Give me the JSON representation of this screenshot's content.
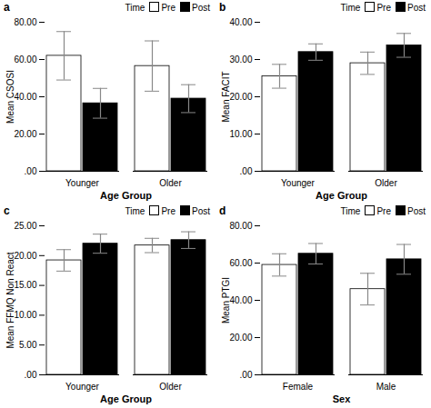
{
  "chart_data": [
    {
      "type": "bar",
      "title": "a",
      "xlabel": "Age Group",
      "ylabel": "Mean CSOSI",
      "categories": [
        "Younger",
        "Older"
      ],
      "series": [
        {
          "name": "Pre",
          "color": "white",
          "values": [
            62.0,
            56.5
          ],
          "errors": [
            13.0,
            13.5
          ]
        },
        {
          "name": "Post",
          "color": "black",
          "values": [
            36.5,
            39.0
          ],
          "errors": [
            8.0,
            7.5
          ]
        }
      ],
      "ylim": [
        0,
        80
      ],
      "yticks": [
        {
          "value": 0,
          "label": ".00"
        },
        {
          "value": 20,
          "label": "20.00"
        },
        {
          "value": 40,
          "label": "40.00"
        },
        {
          "value": 60,
          "label": "60.00"
        },
        {
          "value": 80,
          "label": "80.00"
        }
      ],
      "legend": "upper right",
      "legend_title": "Time",
      "grid": false
    },
    {
      "type": "bar",
      "title": "b",
      "xlabel": "Age Group",
      "ylabel": "Mean FACIT",
      "categories": [
        "Younger",
        "Older"
      ],
      "series": [
        {
          "name": "Pre",
          "color": "white",
          "values": [
            25.5,
            29.0
          ],
          "errors": [
            3.2,
            3.0
          ]
        },
        {
          "name": "Post",
          "color": "black",
          "values": [
            32.0,
            33.8
          ],
          "errors": [
            2.2,
            3.2
          ]
        }
      ],
      "ylim": [
        0,
        40
      ],
      "yticks": [
        {
          "value": 0,
          "label": ".00"
        },
        {
          "value": 10,
          "label": "10.00"
        },
        {
          "value": 20,
          "label": "20.00"
        },
        {
          "value": 30,
          "label": "30.00"
        },
        {
          "value": 40,
          "label": "40.00"
        }
      ],
      "legend": "upper right",
      "legend_title": "Time",
      "grid": false
    },
    {
      "type": "bar",
      "title": "c",
      "xlabel": "Age Group",
      "ylabel": "Mean FFMQ Non React",
      "categories": [
        "Younger",
        "Older"
      ],
      "series": [
        {
          "name": "Pre",
          "color": "white",
          "values": [
            19.2,
            21.7
          ],
          "errors": [
            1.8,
            1.2
          ]
        },
        {
          "name": "Post",
          "color": "black",
          "values": [
            22.0,
            22.6
          ],
          "errors": [
            1.6,
            1.4
          ]
        }
      ],
      "ylim": [
        0,
        25
      ],
      "yticks": [
        {
          "value": 0,
          "label": ".00"
        },
        {
          "value": 5,
          "label": "5.00"
        },
        {
          "value": 10,
          "label": "10.00"
        },
        {
          "value": 15,
          "label": "15.00"
        },
        {
          "value": 20,
          "label": "20.00"
        },
        {
          "value": 25,
          "label": "25.00"
        }
      ],
      "legend": "upper right",
      "legend_title": "Time",
      "grid": false
    },
    {
      "type": "bar",
      "title": "d",
      "xlabel": "Sex",
      "ylabel": "Mean PTGI",
      "categories": [
        "Female",
        "Male"
      ],
      "series": [
        {
          "name": "Pre",
          "color": "white",
          "values": [
            59.0,
            46.0
          ],
          "errors": [
            6.0,
            8.5
          ]
        },
        {
          "name": "Post",
          "color": "black",
          "values": [
            65.0,
            62.0
          ],
          "errors": [
            5.5,
            8.0
          ]
        }
      ],
      "ylim": [
        0,
        80
      ],
      "yticks": [
        {
          "value": 0,
          "label": ".00"
        },
        {
          "value": 20,
          "label": "20.00"
        },
        {
          "value": 40,
          "label": "40.00"
        },
        {
          "value": 60,
          "label": "60.00"
        },
        {
          "value": 80,
          "label": "80.00"
        }
      ],
      "legend": "upper right",
      "legend_title": "Time",
      "grid": false
    }
  ]
}
